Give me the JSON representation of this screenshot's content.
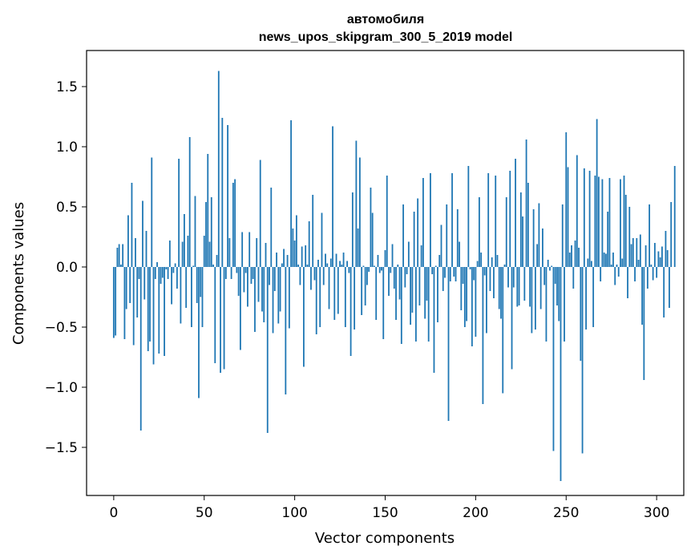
{
  "chart_data": {
    "type": "bar",
    "title": "автомобиля",
    "subtitle": "news_upos_skipgram_300_5_2019 model",
    "xlabel": "Vector components",
    "ylabel": "Components values",
    "xlim": [
      -15,
      315
    ],
    "ylim": [
      -1.9,
      1.8
    ],
    "xticks": [
      0,
      50,
      100,
      150,
      200,
      250,
      300
    ],
    "yticks": [
      -1.5,
      -1.0,
      -0.5,
      0.0,
      0.5,
      1.0,
      1.5
    ],
    "ytick_labels": [
      "−1.5",
      "−1.0",
      "−0.5",
      "0.0",
      "0.5",
      "1.0",
      "1.5"
    ],
    "bar_color": "#1f77b4",
    "grid": false,
    "values": [
      -0.59,
      -0.57,
      0.16,
      0.19,
      0.02,
      0.19,
      -0.6,
      -0.35,
      0.43,
      -0.3,
      0.7,
      -0.65,
      0.24,
      -0.42,
      -0.1,
      -1.36,
      0.55,
      -0.27,
      0.3,
      -0.7,
      -0.62,
      0.91,
      -0.81,
      -0.1,
      0.04,
      -0.72,
      -0.14,
      -0.09,
      -0.74,
      -0.02,
      -0.1,
      0.22,
      -0.31,
      -0.05,
      0.03,
      -0.18,
      0.9,
      -0.47,
      0.21,
      0.44,
      -0.34,
      0.26,
      1.08,
      -0.5,
      0.01,
      0.59,
      -0.3,
      -1.09,
      -0.25,
      -0.5,
      0.26,
      0.54,
      0.94,
      0.21,
      0.58,
      0.02,
      -0.8,
      0.1,
      1.63,
      -0.88,
      1.24,
      -0.85,
      -0.1,
      1.18,
      0.24,
      -0.1,
      0.7,
      0.73,
      -0.05,
      -0.24,
      -0.69,
      0.29,
      -0.21,
      -0.05,
      -0.33,
      0.29,
      -0.14,
      -0.1,
      -0.54,
      0.24,
      -0.29,
      0.89,
      -0.37,
      -0.46,
      0.2,
      -1.38,
      -0.15,
      0.66,
      -0.55,
      -0.2,
      0.12,
      -0.47,
      -0.37,
      0.03,
      0.15,
      -1.06,
      0.1,
      -0.51,
      1.22,
      0.32,
      0.22,
      0.43,
      0.02,
      -0.15,
      0.17,
      -0.83,
      0.18,
      0.02,
      0.38,
      -0.19,
      0.6,
      -0.11,
      -0.56,
      0.06,
      -0.5,
      0.45,
      -0.15,
      0.11,
      0.03,
      -0.35,
      0.07,
      1.17,
      -0.44,
      0.11,
      -0.39,
      0.05,
      0.02,
      0.12,
      -0.5,
      0.05,
      -0.05,
      -0.74,
      0.62,
      -0.52,
      1.05,
      0.32,
      0.91,
      -0.4,
      0.01,
      -0.32,
      -0.15,
      -0.04,
      0.66,
      0.45,
      0.01,
      -0.44,
      0.1,
      -0.05,
      -0.03,
      -0.6,
      0.14,
      0.76,
      -0.24,
      -0.05,
      0.19,
      -0.18,
      -0.44,
      0.02,
      -0.27,
      -0.64,
      0.52,
      -0.17,
      -0.06,
      0.21,
      -0.48,
      -0.38,
      0.46,
      -0.62,
      0.57,
      -0.32,
      0.18,
      0.74,
      -0.43,
      -0.28,
      -0.62,
      0.78,
      -0.06,
      -0.88,
      0.01,
      -0.46,
      0.1,
      0.35,
      -0.2,
      -0.09,
      0.52,
      -1.28,
      -0.12,
      0.78,
      -0.08,
      -0.12,
      0.48,
      0.21,
      -0.36,
      -0.14,
      -0.5,
      -0.45,
      0.84,
      -0.02,
      -0.66,
      -0.11,
      -0.58,
      0.05,
      0.58,
      0.12,
      -1.14,
      -0.07,
      -0.55,
      0.78,
      -0.2,
      0.08,
      -0.26,
      0.76,
      0.1,
      -0.35,
      -0.43,
      -1.05,
      0.02,
      0.58,
      -0.17,
      0.8,
      -0.85,
      -0.17,
      0.9,
      -0.33,
      -0.32,
      0.62,
      0.42,
      -0.28,
      1.06,
      0.7,
      -0.33,
      -0.55,
      0.48,
      -0.52,
      0.19,
      0.53,
      -0.35,
      0.32,
      -0.15,
      -0.62,
      0.06,
      -0.03,
      0.01,
      -1.53,
      -0.14,
      -0.32,
      -0.45,
      -1.78,
      0.52,
      -0.62,
      1.12,
      0.83,
      0.12,
      0.18,
      -0.18,
      0.22,
      0.93,
      0.16,
      -0.78,
      -1.55,
      0.82,
      -0.52,
      0.07,
      0.8,
      0.05,
      -0.5,
      0.76,
      1.23,
      0.75,
      -0.12,
      0.73,
      0.12,
      0.11,
      0.46,
      0.74,
      0.02,
      0.12,
      -0.15,
      0.02,
      -0.08,
      0.73,
      0.07,
      0.76,
      0.6,
      -0.26,
      0.5,
      0.19,
      0.24,
      -0.12,
      0.24,
      0.06,
      0.27,
      -0.48,
      -0.94,
      0.18,
      -0.18,
      0.52,
      0.02,
      -0.11,
      0.2,
      -0.09,
      0.13,
      0.08,
      0.17,
      -0.42,
      0.3,
      0.14,
      -0.34,
      0.54,
      0.0,
      0.84
    ]
  }
}
